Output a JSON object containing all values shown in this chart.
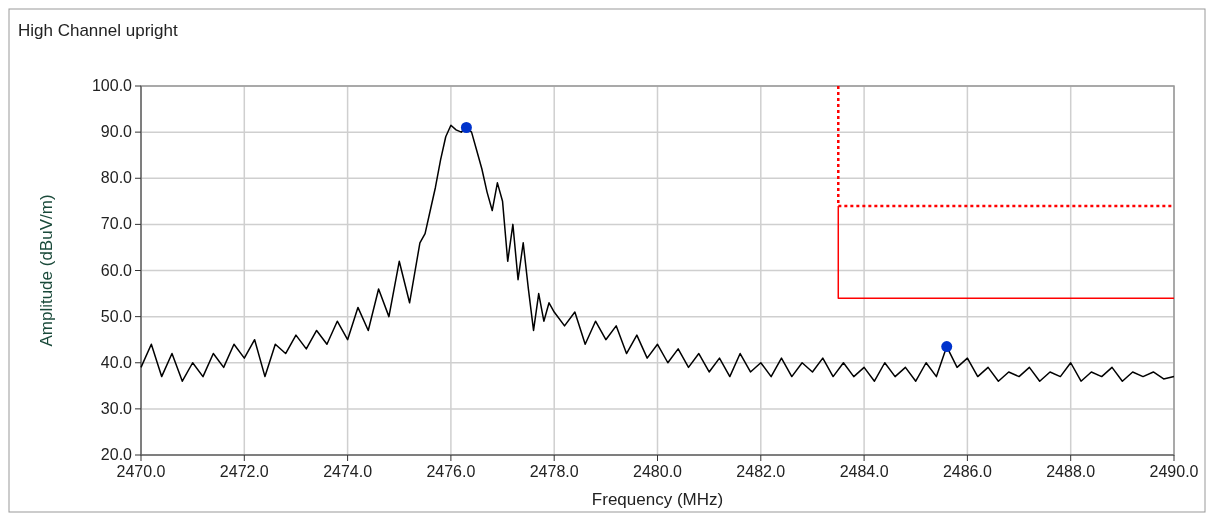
{
  "chart_data": {
    "type": "line",
    "title": "High Channel upright",
    "xlabel": "Frequency (MHz)",
    "ylabel": "Amplitude (dBuV/m)",
    "xlim": [
      2470,
      2490
    ],
    "ylim": [
      20,
      100
    ],
    "xticks": [
      {
        "value": 2470,
        "label": "2470.0"
      },
      {
        "value": 2472,
        "label": "2472.0"
      },
      {
        "value": 2474,
        "label": "2474.0"
      },
      {
        "value": 2476,
        "label": "2476.0"
      },
      {
        "value": 2478,
        "label": "2478.0"
      },
      {
        "value": 2480,
        "label": "2480.0"
      },
      {
        "value": 2482,
        "label": "2482.0"
      },
      {
        "value": 2484,
        "label": "2484.0"
      },
      {
        "value": 2486,
        "label": "2486.0"
      },
      {
        "value": 2488,
        "label": "2488.0"
      },
      {
        "value": 2490,
        "label": "2490.0"
      }
    ],
    "yticks": [
      {
        "value": 20,
        "label": "20.0"
      },
      {
        "value": 30,
        "label": "30.0"
      },
      {
        "value": 40,
        "label": "40.0"
      },
      {
        "value": 50,
        "label": "50.0"
      },
      {
        "value": 60,
        "label": "60.0"
      },
      {
        "value": 70,
        "label": "70.0"
      },
      {
        "value": 80,
        "label": "80.0"
      },
      {
        "value": 90,
        "label": "90.0"
      },
      {
        "value": 100,
        "label": "100.0"
      }
    ],
    "grid": true,
    "series": [
      {
        "color": "#000000",
        "marker": "none",
        "line_style": "solid",
        "x": [
          2470.0,
          2470.2,
          2470.4,
          2470.6,
          2470.8,
          2471.0,
          2471.2,
          2471.4,
          2471.6,
          2471.8,
          2472.0,
          2472.2,
          2472.4,
          2472.6,
          2472.8,
          2473.0,
          2473.2,
          2473.4,
          2473.6,
          2473.8,
          2474.0,
          2474.2,
          2474.4,
          2474.6,
          2474.8,
          2475.0,
          2475.2,
          2475.4,
          2475.5,
          2475.6,
          2475.7,
          2475.8,
          2475.9,
          2476.0,
          2476.1,
          2476.2,
          2476.3,
          2476.4,
          2476.5,
          2476.6,
          2476.7,
          2476.8,
          2476.9,
          2477.0,
          2477.1,
          2477.2,
          2477.3,
          2477.4,
          2477.5,
          2477.6,
          2477.7,
          2477.8,
          2477.9,
          2478.0,
          2478.2,
          2478.4,
          2478.6,
          2478.8,
          2479.0,
          2479.2,
          2479.4,
          2479.6,
          2479.8,
          2480.0,
          2480.2,
          2480.4,
          2480.6,
          2480.8,
          2481.0,
          2481.2,
          2481.4,
          2481.6,
          2481.8,
          2482.0,
          2482.2,
          2482.4,
          2482.6,
          2482.8,
          2483.0,
          2483.2,
          2483.4,
          2483.6,
          2483.8,
          2484.0,
          2484.2,
          2484.4,
          2484.6,
          2484.8,
          2485.0,
          2485.2,
          2485.4,
          2485.6,
          2485.8,
          2486.0,
          2486.2,
          2486.4,
          2486.6,
          2486.8,
          2487.0,
          2487.2,
          2487.4,
          2487.6,
          2487.8,
          2488.0,
          2488.2,
          2488.4,
          2488.6,
          2488.8,
          2489.0,
          2489.2,
          2489.4,
          2489.6,
          2489.8,
          2490.0
        ],
        "values": [
          39,
          44,
          37,
          42,
          36,
          40,
          37,
          42,
          39,
          44,
          41,
          45,
          37,
          44,
          42,
          46,
          43,
          47,
          44,
          49,
          45,
          52,
          47,
          56,
          50,
          62,
          53,
          66,
          68,
          73,
          78,
          84,
          89,
          91.5,
          90.5,
          90,
          91,
          90,
          86,
          82,
          77,
          73,
          79,
          75,
          62,
          70,
          58,
          66,
          56,
          47,
          55,
          49,
          53,
          51,
          48,
          51,
          44,
          49,
          45,
          48,
          42,
          46,
          41,
          44,
          40,
          43,
          39,
          42,
          38,
          41,
          37,
          42,
          38,
          40,
          37,
          41,
          37,
          40,
          38,
          41,
          37,
          40,
          37,
          39,
          36,
          40,
          37,
          39,
          36,
          40,
          37,
          43.5,
          39,
          41,
          37,
          39,
          36,
          38,
          37,
          39,
          36,
          38,
          37,
          40,
          36,
          38,
          37,
          39,
          36,
          38,
          37,
          38,
          36.5,
          37
        ]
      },
      {
        "type": "line",
        "color": "#ff0000",
        "marker": "none",
        "line_style": "dotted",
        "x": [
          2483.5,
          2483.5,
          2490
        ],
        "values": [
          100,
          74,
          74
        ]
      },
      {
        "type": "line",
        "color": "#ff0000",
        "marker": "none",
        "line_style": "solid",
        "x": [
          2483.5,
          2483.5,
          2490
        ],
        "values": [
          74,
          54,
          54
        ]
      },
      {
        "type": "scatter",
        "color": "#0033cc",
        "marker": "circle",
        "x": [
          2476.3,
          2485.6
        ],
        "values": [
          91,
          43.5
        ]
      }
    ]
  }
}
